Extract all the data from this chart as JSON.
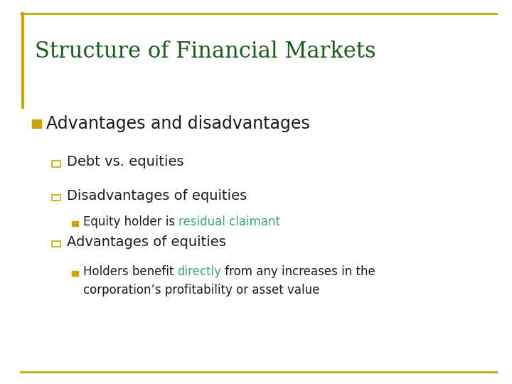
{
  "title": "Structure of Financial Markets",
  "title_color": "#1a5c1a",
  "title_fontsize": 22,
  "background_color": "#ffffff",
  "border_top_color": "#c8a800",
  "border_bottom_color": "#c8a800",
  "bullet1_marker_color": "#c8a800",
  "bullet1_text": "Advantages and disadvantages",
  "bullet1_fontsize": 17,
  "bullet1_color": "#1a1a1a",
  "sub_bullets": [
    {
      "text": "Debt vs. equities",
      "fontsize": 14,
      "color": "#1a1a1a"
    },
    {
      "text": "Disadvantages of equities",
      "fontsize": 14,
      "color": "#1a1a1a"
    },
    {
      "text": "Advantages of equities",
      "fontsize": 14,
      "color": "#1a1a1a"
    }
  ],
  "sub_marker_color": "#c8a800",
  "ssb1_parts": [
    {
      "text": "Equity holder is ",
      "color": "#1a1a1a"
    },
    {
      "text": "residual claimant",
      "color": "#3aaa6e"
    }
  ],
  "ssb1_fontsize": 12,
  "ssb2_line1_parts": [
    {
      "text": "Holders benefit ",
      "color": "#1a1a1a"
    },
    {
      "text": "directly",
      "color": "#3aaa6e"
    },
    {
      "text": " from any increases in the",
      "color": "#1a1a1a"
    }
  ],
  "ssb2_line2": "corporation’s profitability or asset value",
  "ssb2_fontsize": 12,
  "ssb_marker_color": "#c8a800"
}
